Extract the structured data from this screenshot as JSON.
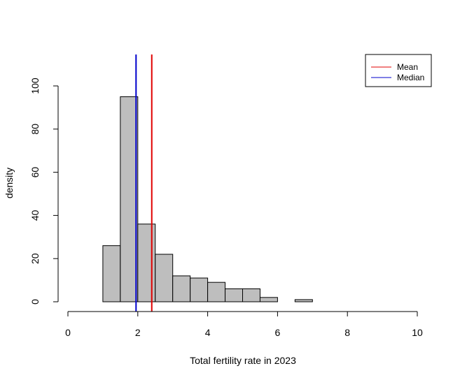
{
  "chart_data": {
    "type": "bar",
    "subtype": "histogram",
    "xlabel": "Total fertility rate in 2023",
    "ylabel": "density",
    "xlim": [
      0,
      10
    ],
    "ylim": [
      0,
      100
    ],
    "x_ticks": [
      0,
      2,
      4,
      6,
      8,
      10
    ],
    "y_ticks": [
      0,
      20,
      40,
      60,
      80,
      100
    ],
    "bins": [
      {
        "x0": 1.0,
        "x1": 1.5,
        "value": 26
      },
      {
        "x0": 1.5,
        "x1": 2.0,
        "value": 95
      },
      {
        "x0": 2.0,
        "x1": 2.5,
        "value": 36
      },
      {
        "x0": 2.5,
        "x1": 3.0,
        "value": 22
      },
      {
        "x0": 3.0,
        "x1": 3.5,
        "value": 12
      },
      {
        "x0": 3.5,
        "x1": 4.0,
        "value": 11
      },
      {
        "x0": 4.0,
        "x1": 4.5,
        "value": 9
      },
      {
        "x0": 4.5,
        "x1": 5.0,
        "value": 6
      },
      {
        "x0": 5.0,
        "x1": 5.5,
        "value": 6
      },
      {
        "x0": 5.5,
        "x1": 6.0,
        "value": 2
      },
      {
        "x0": 6.0,
        "x1": 6.5,
        "value": 0
      },
      {
        "x0": 6.5,
        "x1": 7.0,
        "value": 1
      }
    ],
    "vlines": [
      {
        "name": "Mean",
        "x": 2.4,
        "color": "#e00000"
      },
      {
        "name": "Median",
        "x": 1.95,
        "color": "#0000cc"
      }
    ],
    "bar_color": "#bebebe",
    "grid": false,
    "legend_position": "top-right"
  }
}
